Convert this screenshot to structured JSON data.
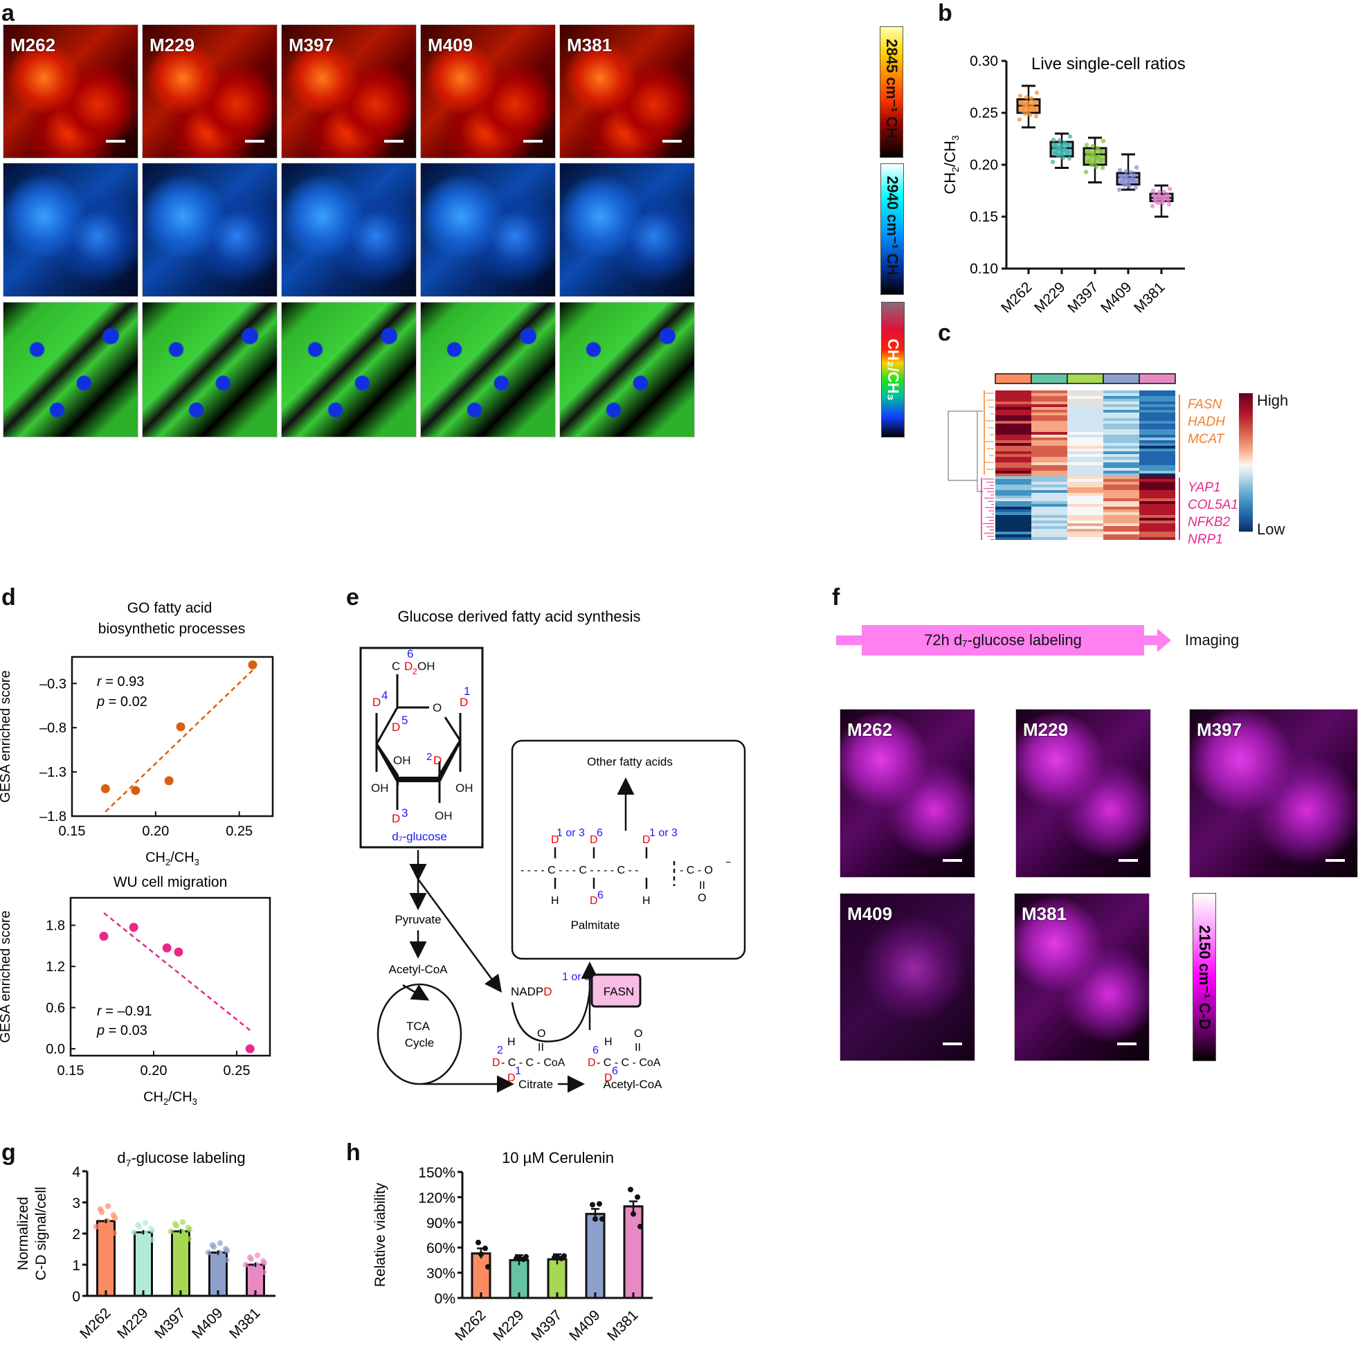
{
  "panels": {
    "a": {
      "label": "a",
      "cell_lines": [
        "M262",
        "M229",
        "M397",
        "M409",
        "M381"
      ],
      "colorbars": [
        {
          "text": "2845 cm⁻¹  CH₂",
          "wavenumber": "2845 cm⁻¹",
          "species": "CH₂"
        },
        {
          "text": "2940 cm⁻¹  CH₃",
          "wavenumber": "2940 cm⁻¹",
          "species": "CH₃"
        },
        {
          "text": "CH₂/CH₃",
          "species": "CH₂/CH₃"
        }
      ]
    },
    "b": {
      "label": "b"
    },
    "c": {
      "label": "c",
      "group_colors": [
        "#fc8d62",
        "#66c2a5",
        "#a6d854",
        "#8da0cb",
        "#e78ac3"
      ],
      "upper_genes": [
        "FASN",
        "HADH",
        "MCAT"
      ],
      "lower_genes": [
        "YAP1",
        "COL5A1",
        "NFKB2",
        "NRP1"
      ],
      "upper_color": "#f07f2a",
      "lower_color": "#e5288c",
      "legend_high": "High",
      "legend_low": "Low"
    },
    "d": {
      "label": "d"
    },
    "e": {
      "label": "e",
      "title": "Glucose derived fatty acid synthesis",
      "glucose_label": "d₇-glucose",
      "nodes": {
        "pyruvate": "Pyruvate",
        "acetyl_coa_1": "Acetyl-CoA",
        "tca": "TCA",
        "cycle": "Cycle",
        "citrate": "Citrate",
        "acetyl_coa_2": "Acetyl-CoA",
        "nadpd": "NADPD",
        "fasn": "FASN",
        "other_fa": "Other fatty acids",
        "palmitate": "Palmitate",
        "one_or_three": "1 or 3",
        "coa": "CoA"
      }
    },
    "f": {
      "label": "f",
      "timeline_text": "72h d₇-glucose labeling",
      "imaging_text": "Imaging",
      "cell_lines": [
        "M262",
        "M229",
        "M397",
        "M409",
        "M381"
      ],
      "colorbar_text": "2150 cm⁻¹  C-D"
    },
    "g": {
      "label": "g"
    },
    "h": {
      "label": "h"
    }
  },
  "chart_data": [
    {
      "id": "b",
      "type": "box",
      "title": "Live single-cell ratios",
      "ylabel": "CH2/CH3",
      "xlabel": "",
      "ylim": [
        0.1,
        0.3
      ],
      "yticks": [
        "0.10",
        "0.15",
        "0.20",
        "0.25",
        "0.30"
      ],
      "categories": [
        "M262",
        "M229",
        "M397",
        "M409",
        "M381"
      ],
      "colors": [
        "#f4923a",
        "#3fb3ad",
        "#86c23c",
        "#8b8fd6",
        "#e083c9"
      ],
      "boxes": [
        {
          "min": 0.236,
          "q1": 0.25,
          "median": 0.257,
          "q3": 0.263,
          "max": 0.276
        },
        {
          "min": 0.197,
          "q1": 0.208,
          "median": 0.216,
          "q3": 0.222,
          "max": 0.23
        },
        {
          "min": 0.183,
          "q1": 0.2,
          "median": 0.21,
          "q3": 0.216,
          "max": 0.226
        },
        {
          "min": 0.176,
          "q1": 0.181,
          "median": 0.188,
          "q3": 0.192,
          "max": 0.21
        },
        {
          "min": 0.15,
          "q1": 0.165,
          "median": 0.168,
          "q3": 0.172,
          "max": 0.18
        }
      ]
    },
    {
      "id": "c",
      "type": "heatmap",
      "categories": [
        "M262",
        "M229",
        "M397",
        "M409",
        "M381"
      ],
      "row_groups": [
        "fatty acid genes (FASN, HADH, MCAT)",
        "migration genes (YAP1, COL5A1, NFKB2, NRP1)"
      ],
      "legend": [
        "High",
        "Low"
      ]
    },
    {
      "id": "d1",
      "type": "scatter",
      "title": "GO fatty acid biosynthetic processes",
      "xlabel": "CH2/CH3",
      "ylabel": "GESA enriched score",
      "xlim": [
        0.15,
        0.27
      ],
      "ylim": [
        -1.8,
        0.0
      ],
      "xticks": [
        "0.15",
        "0.20",
        "0.25"
      ],
      "yticks": [
        "-0.3",
        "-0.8",
        "-1.3",
        "-1.8"
      ],
      "x": [
        0.17,
        0.188,
        0.208,
        0.215,
        0.258
      ],
      "y": [
        -1.49,
        -1.51,
        -1.4,
        -0.79,
        -0.09
      ],
      "color": "#d95f0e",
      "annotation": [
        "r = 0.93",
        "p = 0.02"
      ],
      "fit": {
        "x": [
          0.17,
          0.258
        ],
        "y": [
          -1.75,
          -0.15
        ]
      }
    },
    {
      "id": "d2",
      "type": "scatter",
      "title": "WU cell migration",
      "xlabel": "CH2/CH3",
      "ylabel": "GESA enriched score",
      "xlim": [
        0.15,
        0.27
      ],
      "ylim": [
        -0.1,
        2.2
      ],
      "xticks": [
        "0.15",
        "0.20",
        "0.25"
      ],
      "yticks": [
        "0.0",
        "0.6",
        "1.2",
        "1.8"
      ],
      "x": [
        0.17,
        0.188,
        0.208,
        0.215,
        0.258
      ],
      "y": [
        1.64,
        1.77,
        1.47,
        1.41,
        0.0
      ],
      "color": "#e7298a",
      "annotation": [
        "r = −0.91",
        "p = 0.03"
      ],
      "fit": {
        "x": [
          0.17,
          0.258
        ],
        "y": [
          1.98,
          0.27
        ]
      }
    },
    {
      "id": "g",
      "type": "bar",
      "title": "d7-glucose labeling",
      "ylabel": "Normalized C-D signal/cell",
      "ylim": [
        0,
        4
      ],
      "yticks": [
        "0",
        "1",
        "2",
        "3",
        "4"
      ],
      "categories": [
        "M262",
        "M229",
        "M397",
        "M409",
        "M381"
      ],
      "values": [
        2.4,
        2.04,
        2.07,
        1.39,
        1.0
      ],
      "colors": [
        "#fc8d62",
        "#b2ead9",
        "#a6d854",
        "#8da0cb",
        "#e78ac3"
      ]
    },
    {
      "id": "h",
      "type": "bar",
      "title": "10 µM Cerulenin",
      "ylabel": "Relative viability",
      "ylim": [
        0,
        150
      ],
      "yticks": [
        "0%",
        "30%",
        "60%",
        "90%",
        "120%",
        "150%"
      ],
      "categories": [
        "M262",
        "M229",
        "M397",
        "M409",
        "M381"
      ],
      "values": [
        53,
        45,
        46,
        100,
        109
      ],
      "points": [
        [
          66,
          59,
          52,
          37
        ],
        [
          47,
          46,
          48,
          49
        ],
        [
          48,
          47,
          49,
          50
        ],
        [
          111,
          112,
          94,
          94
        ],
        [
          129,
          120,
          100,
          85
        ]
      ],
      "colors": [
        "#fc8d62",
        "#66c2a5",
        "#a6d854",
        "#8da0cb",
        "#e78ac3"
      ]
    }
  ]
}
